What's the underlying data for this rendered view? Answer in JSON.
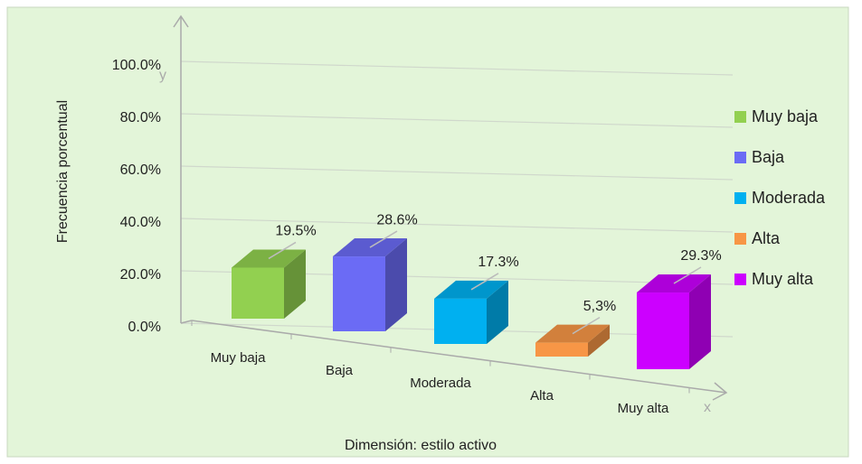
{
  "chart_data": {
    "type": "bar3d",
    "categories": [
      "Muy baja",
      "Baja",
      "Moderada",
      "Alta",
      "Muy alta"
    ],
    "values": [
      19.5,
      28.6,
      17.3,
      5.3,
      29.3
    ],
    "value_labels": [
      "19.5%",
      "28.6%",
      "17.3%",
      "5,3%",
      "29.3%"
    ],
    "colors": [
      "#92d050",
      "#6b6bf5",
      "#00b0f0",
      "#f79646",
      "#cc00ff"
    ],
    "ylabel": "Frecuencia porcentual",
    "xlabel": "Dimensión: estilo activo",
    "annotations": [
      "y",
      "x"
    ],
    "ylim": [
      0,
      100
    ],
    "yticks": [
      {
        "value": 0,
        "label": "0.0%"
      },
      {
        "value": 20,
        "label": "20.0%"
      },
      {
        "value": 40,
        "label": "40.0%"
      },
      {
        "value": 60,
        "label": "60.0%"
      },
      {
        "value": 80,
        "label": "80.0%"
      },
      {
        "value": 100,
        "label": "100.0%"
      }
    ],
    "grid": true,
    "legend": "right"
  }
}
